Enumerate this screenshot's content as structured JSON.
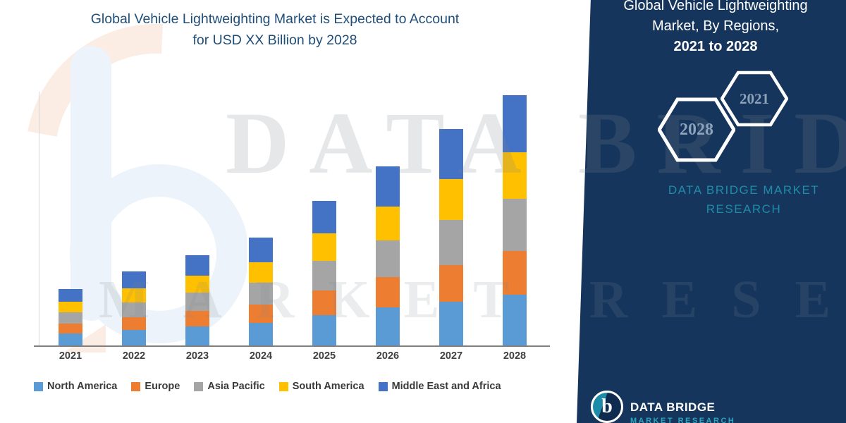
{
  "header": {
    "title_line1": "Global Vehicle Lightweighting Market is Expected to Account",
    "title_line2": "for USD XX Billion by 2028"
  },
  "watermark": {
    "line1": "DATA BRIDGE",
    "line2": "MARKET RESEARCH"
  },
  "side_panel": {
    "panel_color": "#16355C",
    "brand_color": "#1E8CA8",
    "title_line1": "Global Vehicle Lightweighting",
    "title_line2": "Market, By Regions,",
    "title_line3": "2021 to 2028",
    "hexagon_left_year": "2028",
    "hexagon_right_year": "2021",
    "brand_line1": "DATA BRIDGE MARKET",
    "brand_line2": "RESEARCH"
  },
  "footer_logo": {
    "monogram": "b",
    "brand": "DATA BRIDGE",
    "sub": "MARKET RESEARCH"
  },
  "chart_data": {
    "type": "bar",
    "stacked": true,
    "title": "Global Vehicle Lightweighting Market is Expected to Account for USD XX Billion by 2028",
    "xlabel": "",
    "ylabel": "",
    "y_axis_visible": false,
    "units": "relative index (actual values shown as USD XX Billion, no y-axis labels in figure)",
    "legend_position": "bottom",
    "categories": [
      "2021",
      "2022",
      "2023",
      "2024",
      "2025",
      "2026",
      "2027",
      "2028"
    ],
    "series": [
      {
        "name": "North America",
        "color": "#5B9BD5",
        "values": [
          1.7,
          2.2,
          2.7,
          3.2,
          4.3,
          5.4,
          6.2,
          7.2
        ]
      },
      {
        "name": "Europe",
        "color": "#ED7D31",
        "values": [
          1.4,
          1.8,
          2.2,
          2.6,
          3.5,
          4.3,
          5.2,
          6.2
        ]
      },
      {
        "name": "Asia Pacific",
        "color": "#A5A5A5",
        "values": [
          1.6,
          2.1,
          2.6,
          3.1,
          4.2,
          5.2,
          6.4,
          7.4
        ]
      },
      {
        "name": "South America",
        "color": "#FFC000",
        "values": [
          1.5,
          2.0,
          2.4,
          2.9,
          3.9,
          4.8,
          5.8,
          6.6
        ]
      },
      {
        "name": "Middle East and Africa",
        "color": "#4472C4",
        "values": [
          1.8,
          2.4,
          2.9,
          3.5,
          4.6,
          5.7,
          7.1,
          8.1
        ]
      }
    ],
    "totals": [
      8.0,
      10.5,
      12.8,
      15.3,
      20.5,
      25.4,
      30.7,
      35.5
    ],
    "ylim": [
      0,
      36
    ]
  }
}
